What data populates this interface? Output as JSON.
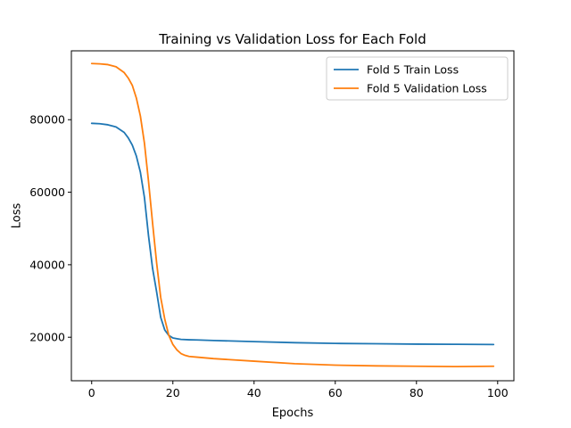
{
  "chart_data": {
    "type": "line",
    "title": "Training vs Validation Loss for Each Fold",
    "xlabel": "Epochs",
    "ylabel": "Loss",
    "xlim": [
      -5,
      104
    ],
    "ylim": [
      8000,
      99000
    ],
    "xticks": [
      0,
      20,
      40,
      60,
      80,
      100
    ],
    "yticks": [
      20000,
      40000,
      60000,
      80000
    ],
    "legend_position": "top-right",
    "grid": false,
    "series": [
      {
        "name": "Fold 5 Train Loss",
        "color": "#1f77b4",
        "x": [
          0,
          2,
          4,
          6,
          8,
          9,
          10,
          11,
          12,
          13,
          14,
          15,
          16,
          17,
          18,
          19,
          20,
          21,
          22,
          24,
          26,
          30,
          40,
          50,
          60,
          70,
          80,
          90,
          99
        ],
        "y": [
          79000,
          78900,
          78600,
          78000,
          76500,
          75000,
          73000,
          70000,
          65500,
          58500,
          48000,
          39000,
          32500,
          25500,
          22000,
          20500,
          19800,
          19600,
          19400,
          19300,
          19250,
          19100,
          18800,
          18500,
          18300,
          18200,
          18100,
          18050,
          18000
        ]
      },
      {
        "name": "Fold 5 Validation Loss",
        "color": "#ff7f0e",
        "x": [
          0,
          2,
          4,
          6,
          8,
          9,
          10,
          11,
          12,
          13,
          14,
          15,
          16,
          17,
          18,
          19,
          20,
          21,
          22,
          23,
          24,
          26,
          30,
          40,
          50,
          60,
          70,
          80,
          90,
          99
        ],
        "y": [
          95500,
          95400,
          95200,
          94600,
          93000,
          91500,
          89500,
          86000,
          81000,
          73500,
          63000,
          51500,
          40500,
          31000,
          25000,
          20500,
          18000,
          16500,
          15500,
          15000,
          14700,
          14500,
          14100,
          13400,
          12700,
          12300,
          12100,
          12000,
          11900,
          12000
        ]
      }
    ]
  }
}
